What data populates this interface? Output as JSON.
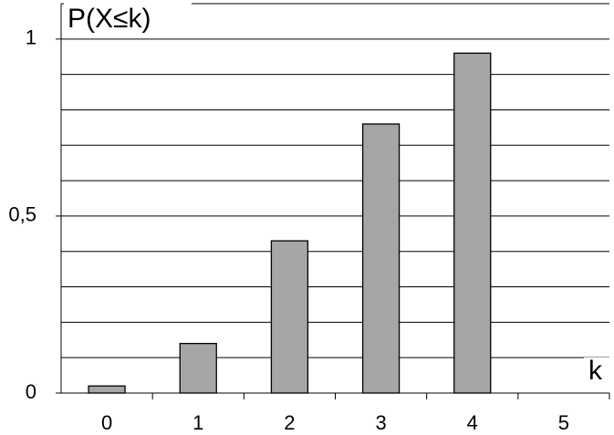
{
  "chart_data": {
    "type": "bar",
    "y_label": "P(X≤k)",
    "x_label": "k",
    "categories": [
      "0",
      "1",
      "2",
      "3",
      "4",
      "5"
    ],
    "values": [
      0.02,
      0.14,
      0.43,
      0.76,
      0.96,
      null
    ],
    "color": "#a6a6a6",
    "ylim": [
      0,
      1.1
    ],
    "yticks": [
      0,
      {
        "value": 0.5,
        "label": "0,5"
      },
      1
    ],
    "minor_yticks": [
      0.1,
      0.2,
      0.3,
      0.4,
      0.6,
      0.7,
      0.8,
      0.9,
      1.1
    ],
    "grid": true
  }
}
